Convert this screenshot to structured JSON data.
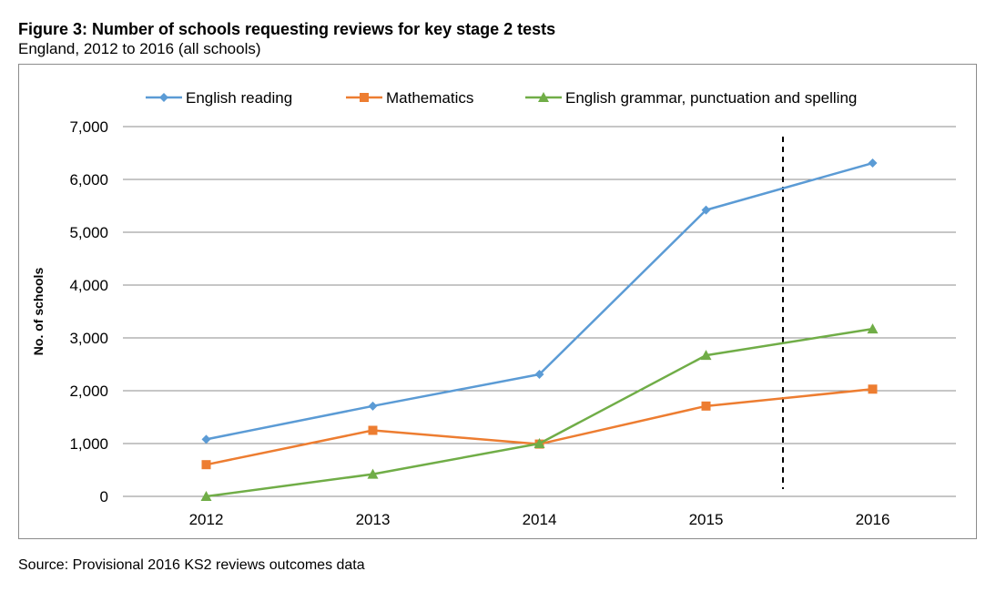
{
  "figure": {
    "title": "Figure 3: Number of schools requesting reviews for key stage 2 tests",
    "subtitle": "England, 2012 to 2016 (all schools)",
    "source": "Source: Provisional 2016 KS2 reviews outcomes data"
  },
  "chart_data": {
    "type": "line",
    "title": "",
    "xlabel": "",
    "ylabel": "No. of schools",
    "categories": [
      "2012",
      "2013",
      "2014",
      "2015",
      "2016"
    ],
    "ylim": [
      0,
      7000
    ],
    "yticks": [
      0,
      1000,
      2000,
      3000,
      4000,
      5000,
      6000,
      7000
    ],
    "ytick_labels": [
      "0",
      "1,000",
      "2,000",
      "3,000",
      "4,000",
      "5,000",
      "6,000",
      "7,000"
    ],
    "grid": true,
    "legend_position": "top",
    "series": [
      {
        "name": "English reading",
        "values": [
          1080,
          1710,
          2310,
          5420,
          6310
        ],
        "color": "#5b9bd5",
        "marker": "diamond"
      },
      {
        "name": "Mathematics",
        "values": [
          600,
          1250,
          990,
          1710,
          2030
        ],
        "color": "#ed7d31",
        "marker": "square"
      },
      {
        "name": "English grammar, punctuation and spelling",
        "values": [
          0,
          420,
          1000,
          2670,
          3170
        ],
        "color": "#70ad47",
        "marker": "triangle"
      }
    ],
    "reference_line": {
      "style": "dashed",
      "between": [
        "2015",
        "2016"
      ]
    }
  }
}
